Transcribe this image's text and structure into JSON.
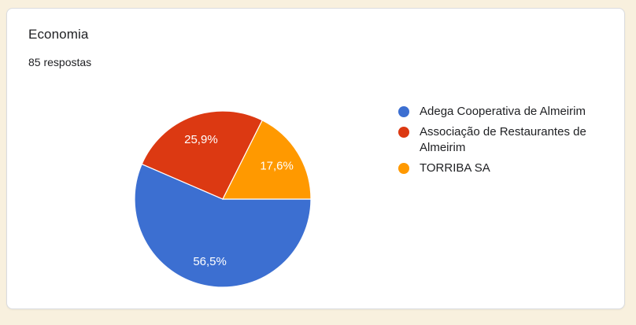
{
  "page": {
    "background_color": "#F8F0DE"
  },
  "card": {
    "title": "Economia",
    "subtitle": "85 respostas"
  },
  "chart_data": {
    "type": "pie",
    "title": "Economia",
    "subtitle": "85 respostas",
    "total_responses": 85,
    "legend_position": "right",
    "start_angle_deg": 90,
    "direction": "clockwise",
    "label_color": "#FFFFFF",
    "slice_border_color": "#FFFFFF",
    "slices": [
      {
        "label": "Adega Cooperativa de Almeirim",
        "value_percent": 56.5,
        "percent_label": "56,5%",
        "color": "#3C6FD1"
      },
      {
        "label": "Associação de Restaurantes de Almeirim",
        "value_percent": 25.9,
        "percent_label": "25,9%",
        "color": "#DC3912"
      },
      {
        "label": "TORRIBA SA",
        "value_percent": 17.6,
        "percent_label": "17,6%",
        "color": "#FF9900"
      }
    ]
  }
}
